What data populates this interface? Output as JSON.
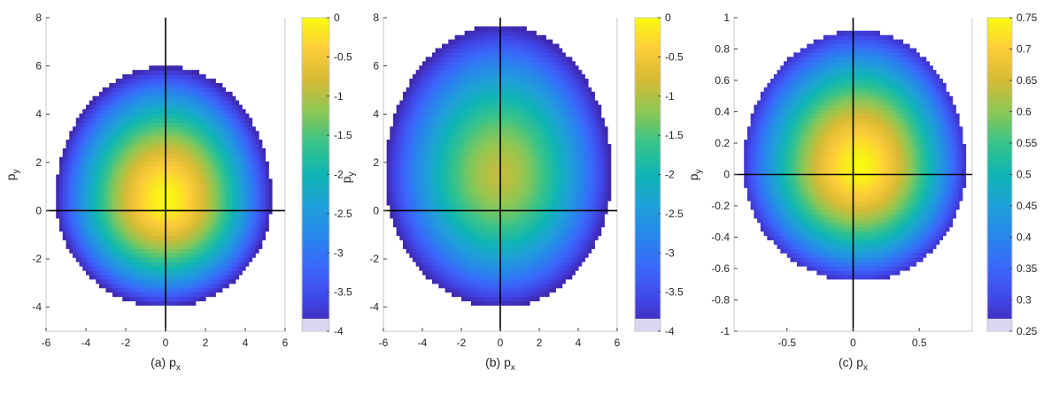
{
  "chart_data": [
    {
      "type": "heatmap",
      "xlabel": "(a) p_x",
      "ylabel": "p_y",
      "xlim": [
        -6,
        6
      ],
      "ylim": [
        -5,
        8
      ],
      "xticks": [
        -6,
        -4,
        -2,
        0,
        2,
        4,
        6
      ],
      "yticks": [
        -4,
        -2,
        0,
        2,
        4,
        6,
        8
      ],
      "colorbar": {
        "min": -4,
        "max": 0,
        "ticks": [
          0,
          -0.5,
          -1,
          -1.5,
          -2,
          -2.5,
          -3,
          -3.5,
          -4
        ]
      },
      "distribution": {
        "center": [
          0,
          0.5
        ],
        "x_extent": [
          -5.5,
          5.3
        ],
        "y_extent": [
          -4.0,
          6.0
        ],
        "peak": 0,
        "edge": -4
      }
    },
    {
      "type": "heatmap",
      "xlabel": "(b) p_x",
      "ylabel": "p_y",
      "xlim": [
        -6,
        6
      ],
      "ylim": [
        -5,
        8
      ],
      "xticks": [
        -6,
        -4,
        -2,
        0,
        2,
        4,
        6
      ],
      "yticks": [
        -4,
        -2,
        0,
        2,
        4,
        6,
        8
      ],
      "colorbar": {
        "min": -4,
        "max": 0,
        "ticks": [
          0,
          -0.5,
          -1,
          -1.5,
          -2,
          -2.5,
          -3,
          -3.5,
          -4
        ]
      },
      "distribution": {
        "center": [
          0,
          1.5
        ],
        "x_extent": [
          -5.9,
          5.7
        ],
        "y_extent": [
          -4.0,
          7.7
        ],
        "peak": -0.9,
        "edge": -4
      }
    },
    {
      "type": "heatmap",
      "xlabel": "(c) p_x",
      "ylabel": "p_y",
      "xlim": [
        -0.9,
        0.9
      ],
      "ylim": [
        -1,
        1
      ],
      "xticks": [
        -0.5,
        0,
        0.5
      ],
      "yticks": [
        1,
        0.8,
        0.6,
        0.4,
        0.2,
        0,
        -0.2,
        -0.4,
        -0.6,
        -0.8,
        -1
      ],
      "colorbar": {
        "min": 0.25,
        "max": 0.75,
        "ticks": [
          0.75,
          0.7,
          0.65,
          0.6,
          0.55,
          0.5,
          0.45,
          0.4,
          0.35,
          0.3,
          0.25
        ]
      },
      "distribution": {
        "center": [
          0.05,
          0.05
        ],
        "x_extent": [
          -0.83,
          0.85
        ],
        "y_extent": [
          -0.68,
          0.92
        ],
        "peak": 0.75,
        "edge": 0.27
      }
    }
  ]
}
